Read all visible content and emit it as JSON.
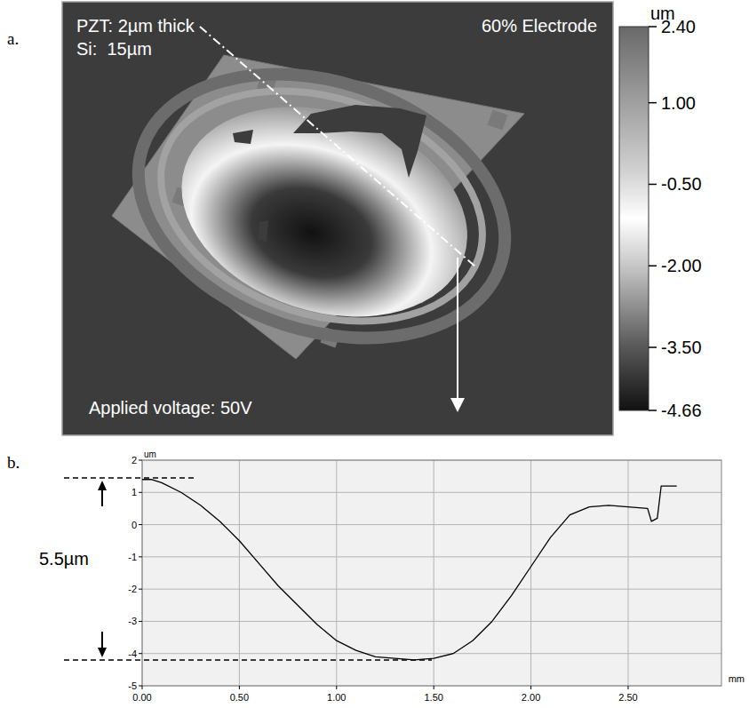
{
  "chart_data": [
    {
      "type": "surface",
      "panel_label": "a.",
      "annotations": [
        "PZT: 2µm thick",
        "Si:  15µm",
        "60% Electrode",
        "Applied voltage: 50V"
      ],
      "colorbar": {
        "label": "um",
        "range": [
          -4.66,
          2.4
        ],
        "ticks": [
          {
            "value": 2.4,
            "label": "2.40"
          },
          {
            "value": 1,
            "label": "1.00"
          },
          {
            "value": -0.5,
            "label": "-0.50"
          },
          {
            "value": -2,
            "label": "-2.00"
          },
          {
            "value": -3.5,
            "label": "-3.50"
          },
          {
            "value": -4.66,
            "label": "-4.66"
          }
        ]
      }
    },
    {
      "type": "line",
      "panel_label": "b.",
      "x_label": "mm",
      "y_label": "um",
      "x": [
        0,
        0.05,
        0.1,
        0.2,
        0.3,
        0.4,
        0.5,
        0.6,
        0.7,
        0.8,
        0.9,
        1.0,
        1.1,
        1.2,
        1.3,
        1.4,
        1.5,
        1.6,
        1.7,
        1.8,
        1.9,
        2.0,
        2.1,
        2.2,
        2.3,
        2.4,
        2.5,
        2.6,
        2.62,
        2.65,
        2.67,
        2.75
      ],
      "values": [
        1.4,
        1.4,
        1.3,
        1.0,
        0.6,
        0.1,
        -0.5,
        -1.2,
        -1.9,
        -2.5,
        -3.1,
        -3.6,
        -3.9,
        -4.1,
        -4.15,
        -4.2,
        -4.15,
        -4.0,
        -3.6,
        -3.0,
        -2.2,
        -1.3,
        -0.4,
        0.3,
        0.55,
        0.6,
        0.55,
        0.5,
        0.1,
        0.2,
        1.2,
        1.2
      ],
      "color": "#000000",
      "xlim": [
        0,
        2.98
      ],
      "ylim": [
        -5,
        2
      ],
      "xticks": [
        {
          "value": 0,
          "label": "0.00"
        },
        {
          "value": 0.5,
          "label": "0.50"
        },
        {
          "value": 1,
          "label": "1.00"
        },
        {
          "value": 1.5,
          "label": "1.50"
        },
        {
          "value": 2,
          "label": "2.00"
        },
        {
          "value": 2.5,
          "label": "2.50"
        }
      ],
      "yticks": [
        -5,
        -4,
        -3,
        -2,
        -1,
        0,
        1,
        2
      ],
      "grid": true,
      "annotations": [
        {
          "text": "5.5µm",
          "y": [
            1.45,
            -4.2
          ]
        }
      ]
    }
  ]
}
